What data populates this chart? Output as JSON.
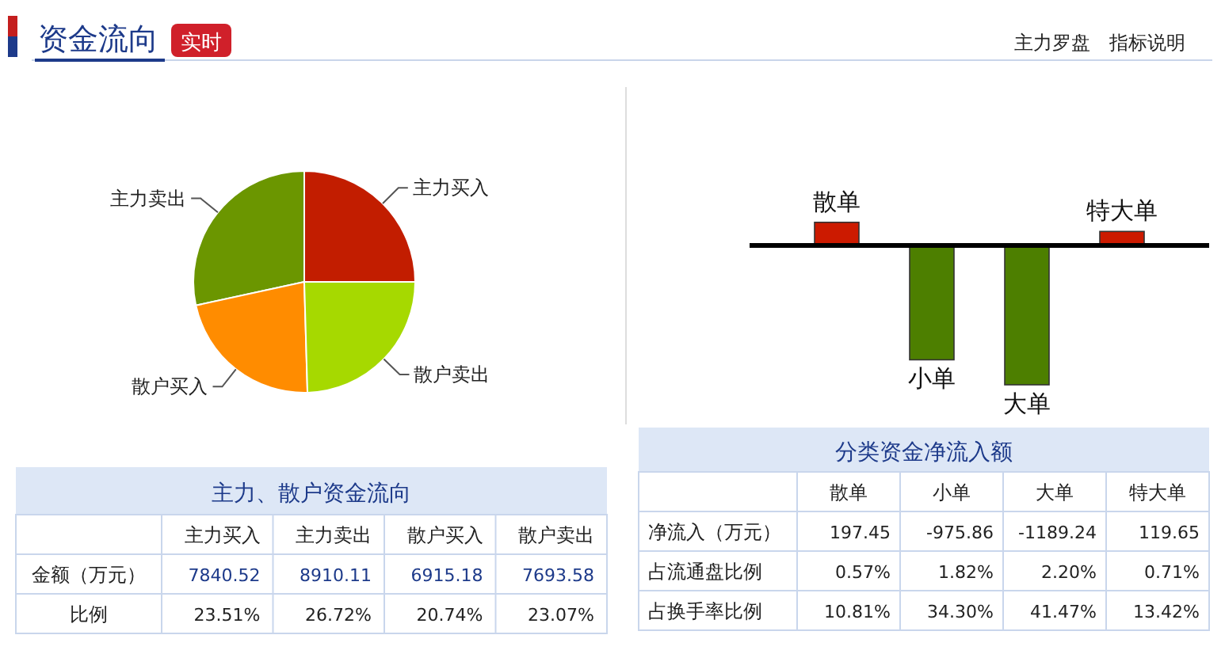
{
  "chart_data": [
    {
      "type": "pie",
      "title": "资金流向",
      "annotations": [
        "实时"
      ],
      "categories": [
        "主力买入",
        "主力卖出",
        "散户买入",
        "散户卖出"
      ],
      "values": [
        25.0,
        28.41,
        22.05,
        24.54
      ],
      "colors": [
        "#c21d00",
        "#6b9600",
        "#ff8c00",
        "#a6d900"
      ]
    },
    {
      "type": "bar",
      "title": "分类资金净流入额",
      "annotations": [
        "主力罗盘",
        "指标说明",
        "净流入（万元）",
        "占流通盘比例",
        "占换手率比例",
        "0.57%",
        "1.82%",
        "2.20%",
        "0.71%",
        "10.81%",
        "34.30%",
        "41.47%",
        "13.42%"
      ],
      "categories": [
        "散单",
        "小单",
        "大单",
        "特大单"
      ],
      "values": [
        197.45,
        -975.86,
        -1189.24,
        119.65
      ],
      "colors": [
        "#cc1a00",
        "#4d7f00",
        "#4d7f00",
        "#cc1a00"
      ],
      "data_labels": true
    },
    {
      "type": "other",
      "title": "主力、散户资金流向",
      "categories": [
        "主力买入",
        "主力卖出",
        "散户买入",
        "散户卖出"
      ],
      "annotations": [
        "金额（万元）",
        "比例",
        "7840.52",
        "8910.11",
        "6915.18",
        "7693.58",
        "23.51%",
        "26.72%",
        "20.74%",
        "23.07%"
      ]
    }
  ]
}
